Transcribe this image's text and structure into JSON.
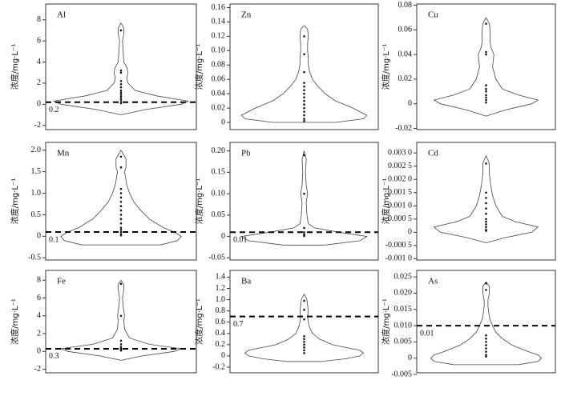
{
  "chart_data": [
    {
      "type": "violin",
      "title": "Al",
      "ylabel": "浓度/mg·L⁻¹",
      "ylim": [
        -2.4,
        9.5
      ],
      "yticks": [
        -2,
        0,
        2,
        4,
        6,
        8
      ],
      "threshold": 0.2,
      "violin": {
        "y": [
          -1,
          -0.5,
          0,
          0.3,
          0.8,
          1.3,
          2,
          2.5,
          3,
          3.5,
          4,
          5,
          6,
          6.7,
          7.2,
          7.7
        ],
        "width": [
          0,
          0.35,
          0.85,
          0.95,
          0.5,
          0.2,
          0.1,
          0.08,
          0.1,
          0.08,
          0.04,
          0.03,
          0.02,
          0.04,
          0.04,
          0
        ]
      },
      "points": [
        7,
        3.2,
        3,
        2.2,
        1.9,
        1.6,
        1.3,
        1.1,
        0.9,
        0.7,
        0.5,
        0.3,
        0.1
      ]
    },
    {
      "type": "violin",
      "title": "Zn",
      "ylabel": "浓度/mg·L⁻¹",
      "ylim": [
        -0.01,
        0.165
      ],
      "yticks": [
        0,
        0.02,
        0.04,
        0.06,
        0.08,
        {
          "value": 0.1,
          "label": "0.10"
        },
        0.12,
        0.14,
        0.16
      ],
      "violin": {
        "y": [
          0,
          0.005,
          0.01,
          0.02,
          0.03,
          0.04,
          0.05,
          0.06,
          0.07,
          0.08,
          0.09,
          0.1,
          0.11,
          0.12,
          0.13,
          0.135
        ],
        "width": [
          0.45,
          0.85,
          0.9,
          0.7,
          0.45,
          0.3,
          0.2,
          0.12,
          0.08,
          0.06,
          0.06,
          0.05,
          0.05,
          0.06,
          0.05,
          0
        ]
      },
      "points": [
        0.12,
        0.095,
        0.07,
        0.055,
        0.05,
        0.045,
        0.04,
        0.035,
        0.03,
        0.025,
        0.02,
        0.015,
        0.01,
        0.005,
        0.002
      ]
    },
    {
      "type": "violin",
      "title": "Cu",
      "ylabel": "浓度/mg·L⁻¹",
      "ylim": [
        -0.021,
        0.081
      ],
      "yticks": [
        -0.02,
        0,
        0.02,
        0.04,
        0.06,
        0.08
      ],
      "violin": {
        "y": [
          -0.01,
          -0.005,
          0,
          0.003,
          0.007,
          0.012,
          0.02,
          0.03,
          0.04,
          0.045,
          0.05,
          0.06,
          0.065,
          0.07
        ],
        "width": [
          0,
          0.3,
          0.7,
          0.8,
          0.5,
          0.25,
          0.15,
          0.1,
          0.12,
          0.08,
          0.06,
          0.06,
          0.05,
          0
        ]
      },
      "points": [
        0.065,
        0.042,
        0.04,
        0.015,
        0.012,
        0.01,
        0.007,
        0.005,
        0.003,
        0.001
      ]
    },
    {
      "type": "violin",
      "title": "Mn",
      "ylabel": "浓度/mg·L⁻¹",
      "ylim": [
        -0.55,
        2.18
      ],
      "yticks": [
        -0.5,
        0,
        0.5,
        {
          "value": 1,
          "label": "1.0"
        },
        1.5,
        {
          "value": 2,
          "label": "2.0"
        }
      ],
      "threshold": 0.1,
      "violin": {
        "y": [
          -0.2,
          -0.1,
          0,
          0.1,
          0.2,
          0.4,
          0.6,
          0.8,
          1,
          1.2,
          1.5,
          1.6,
          1.8,
          2
        ],
        "width": [
          0.55,
          0.8,
          0.85,
          0.75,
          0.6,
          0.4,
          0.28,
          0.18,
          0.12,
          0.08,
          0.05,
          0.07,
          0.07,
          0
        ]
      },
      "points": [
        1.85,
        1.6,
        1.1,
        1,
        0.9,
        0.8,
        0.7,
        0.6,
        0.5,
        0.4,
        0.3,
        0.2,
        0.15,
        0.1,
        0.05,
        0.02
      ]
    },
    {
      "type": "violin",
      "title": "Pb",
      "ylabel": "浓度/mg·L⁻¹",
      "ylim": [
        -0.055,
        0.22
      ],
      "yticks": [
        -0.05,
        0,
        0.05,
        {
          "value": 0.1,
          "label": "0.10"
        },
        0.15,
        {
          "value": 0.2,
          "label": "0.20"
        }
      ],
      "threshold": 0.01,
      "violin": {
        "y": [
          -0.02,
          -0.01,
          0,
          0.01,
          0.02,
          0.03,
          0.05,
          0.08,
          0.1,
          0.12,
          0.15,
          0.18,
          0.2
        ],
        "width": [
          0.3,
          0.8,
          0.9,
          0.5,
          0.15,
          0.06,
          0.04,
          0.03,
          0.05,
          0.03,
          0.02,
          0.03,
          0
        ]
      },
      "points": [
        0.19,
        0.1,
        0.02,
        0.01,
        0.005,
        0.003,
        0.001
      ]
    },
    {
      "type": "violin",
      "title": "Cd",
      "ylabel": "浓度/mg·L⁻¹",
      "ylim": [
        -0.00105,
        0.0034
      ],
      "yticks": [
        {
          "value": -0.001,
          "label": "-0.001 0"
        },
        {
          "value": -0.0005,
          "label": "-0.000 5"
        },
        0,
        {
          "value": 0.0005,
          "label": "0.000 5"
        },
        {
          "value": 0.001,
          "label": "0.001 0"
        },
        {
          "value": 0.0015,
          "label": "0.001 5"
        },
        {
          "value": 0.002,
          "label": "0.002 0"
        },
        {
          "value": 0.0025,
          "label": "0.002 5"
        },
        {
          "value": 0.003,
          "label": "0.003 0"
        }
      ],
      "violin": {
        "y": [
          -0.0004,
          -0.0002,
          0,
          0.0002,
          0.0004,
          0.0006,
          0.001,
          0.0014,
          0.0018,
          0.0022,
          0.0026,
          0.0029
        ],
        "width": [
          0,
          0.3,
          0.7,
          0.8,
          0.45,
          0.25,
          0.15,
          0.1,
          0.07,
          0.05,
          0.05,
          0
        ]
      },
      "points": [
        0.0026,
        0.0015,
        0.0013,
        0.0011,
        0.0009,
        0.0007,
        0.0005,
        0.0004,
        0.0003,
        0.0002,
        0.0001,
        5e-05
      ]
    },
    {
      "type": "violin",
      "title": "Fe",
      "ylabel": "浓度/mg·L⁻¹",
      "ylim": [
        -2.4,
        9.1
      ],
      "yticks": [
        -2,
        0,
        2,
        4,
        6,
        8
      ],
      "threshold": 0.3,
      "violin": {
        "y": [
          -1,
          -0.5,
          0,
          0.3,
          0.8,
          1.5,
          2.5,
          3.5,
          4,
          5,
          6,
          7,
          7.5,
          8
        ],
        "width": [
          0,
          0.3,
          0.75,
          0.85,
          0.4,
          0.12,
          0.05,
          0.04,
          0.05,
          0.03,
          0.02,
          0.04,
          0.04,
          0
        ]
      },
      "points": [
        7.6,
        4,
        1.2,
        0.8,
        0.5,
        0.3,
        0.2,
        0.1
      ]
    },
    {
      "type": "violin",
      "title": "Ba",
      "ylabel": "浓度/mg·L⁻¹",
      "ylim": [
        -0.3,
        1.52
      ],
      "yticks": [
        -0.2,
        0,
        0.2,
        0.4,
        0.6,
        0.8,
        {
          "value": 1,
          "label": "1.0"
        },
        1.2,
        1.4
      ],
      "threshold": 0.7,
      "violin": {
        "y": [
          -0.1,
          -0.05,
          0,
          0.05,
          0.1,
          0.15,
          0.2,
          0.3,
          0.4,
          0.5,
          0.6,
          0.7,
          0.8,
          0.9,
          1,
          1.1
        ],
        "width": [
          0.25,
          0.6,
          0.8,
          0.85,
          0.8,
          0.6,
          0.4,
          0.22,
          0.12,
          0.08,
          0.06,
          0.05,
          0.06,
          0.05,
          0.04,
          0
        ]
      },
      "points": [
        0.98,
        0.82,
        0.65,
        0.35,
        0.3,
        0.25,
        0.2,
        0.15,
        0.1,
        0.05
      ]
    },
    {
      "type": "violin",
      "title": "As",
      "ylabel": "浓度/mg·L⁻¹",
      "ylim": [
        -0.0045,
        0.027
      ],
      "yticks": [
        -0.005,
        0,
        0.005,
        {
          "value": 0.01,
          "label": "0.010"
        },
        0.015,
        {
          "value": 0.02,
          "label": "0.020"
        },
        0.025
      ],
      "threshold": 0.01,
      "violin": {
        "y": [
          -0.002,
          -0.001,
          0,
          0.001,
          0.002,
          0.004,
          0.006,
          0.008,
          0.01,
          0.012,
          0.014,
          0.016,
          0.018,
          0.02,
          0.022,
          0.0235
        ],
        "width": [
          0.5,
          0.8,
          0.85,
          0.8,
          0.65,
          0.4,
          0.25,
          0.15,
          0.1,
          0.06,
          0.04,
          0.03,
          0.03,
          0.05,
          0.05,
          0
        ]
      },
      "points": [
        0.023,
        0.021,
        0.007,
        0.006,
        0.005,
        0.004,
        0.003,
        0.002,
        0.001,
        0.0005
      ]
    }
  ]
}
